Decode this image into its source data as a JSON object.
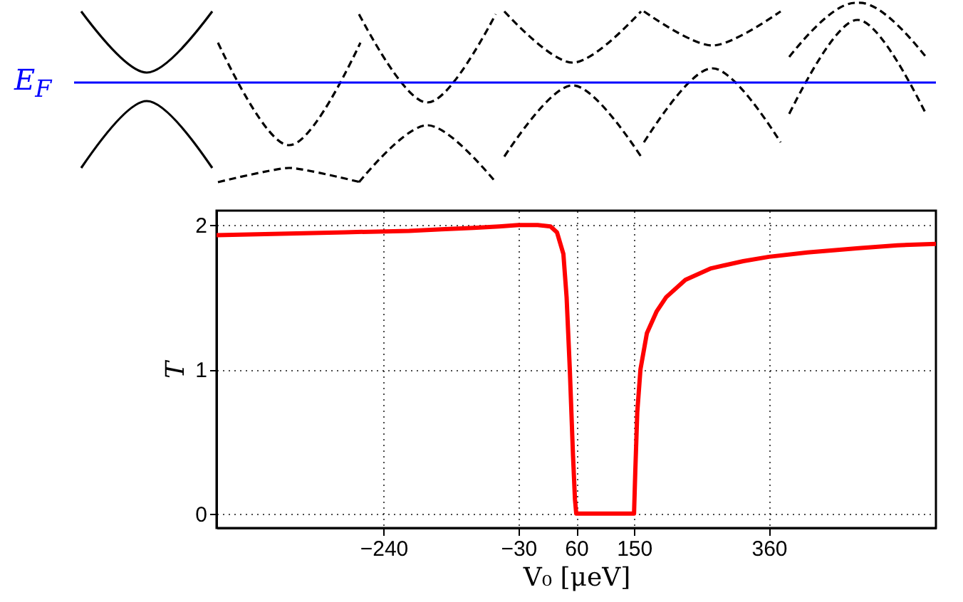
{
  "chart_data": {
    "type": "line",
    "xlabel": "V₀ [μeV]",
    "ylabel": "T",
    "annotations": [
      "E$_{F}$"
    ],
    "x": [
      -500,
      -400,
      -300,
      -200,
      -150,
      -100,
      -60,
      -30,
      0,
      20,
      30,
      40,
      45,
      50,
      55,
      58,
      60,
      100,
      150,
      152,
      155,
      160,
      170,
      185,
      200,
      230,
      270,
      320,
      360,
      420,
      500,
      560,
      620
    ],
    "series": [
      {
        "color": "#ff0000",
        "values": [
          1.93,
          1.94,
          1.95,
          1.96,
          1.97,
          1.98,
          1.99,
          2.0,
          2.0,
          1.99,
          1.95,
          1.8,
          1.5,
          1.0,
          0.4,
          0.1,
          0,
          0,
          0,
          0.3,
          0.7,
          1.0,
          1.25,
          1.4,
          1.5,
          1.62,
          1.7,
          1.75,
          1.78,
          1.81,
          1.84,
          1.86,
          1.87
        ]
      }
    ],
    "xlim": [
      -500,
      620
    ],
    "ylim": [
      -0.1,
      2.1
    ],
    "xticks": [
      -240,
      -30,
      60,
      150,
      360
    ],
    "yticks": [
      0,
      1,
      2
    ],
    "grid": true
  }
}
